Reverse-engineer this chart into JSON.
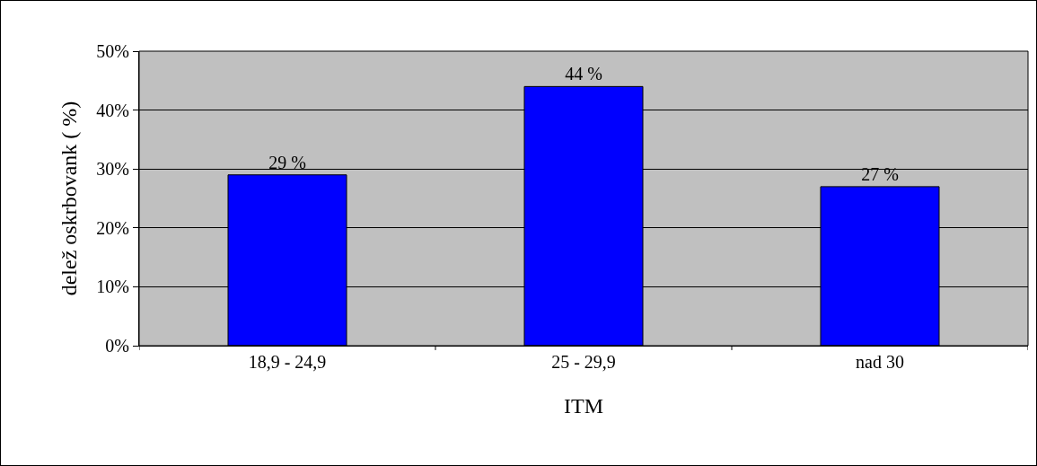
{
  "chart_data": {
    "type": "bar",
    "xlabel": "ITM",
    "ylabel": "delež oskrbovank ( %)",
    "categories": [
      "18,9 - 24,9",
      "25 - 29,9",
      "nad 30"
    ],
    "values": [
      29,
      44,
      27
    ],
    "value_labels": [
      "29 %",
      "44 %",
      "27 %"
    ],
    "color": "#0000ff",
    "ylim": [
      0,
      50
    ],
    "yticks": [
      {
        "value": 0,
        "label": "0%"
      },
      {
        "value": 10,
        "label": "10%"
      },
      {
        "value": 20,
        "label": "20%"
      },
      {
        "value": 30,
        "label": "30%"
      },
      {
        "value": 40,
        "label": "40%"
      },
      {
        "value": 50,
        "label": "50%"
      }
    ],
    "grid": "y"
  }
}
